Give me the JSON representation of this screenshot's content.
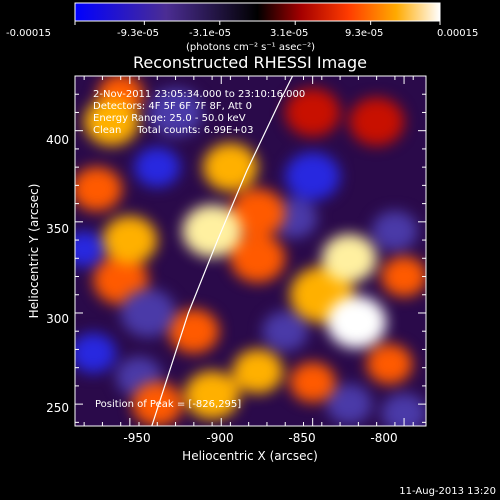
{
  "chart_data": {
    "type": "heatmap",
    "title": "Reconstructed RHESSI Image",
    "xlabel": "Heliocentric X (arcsec)",
    "ylabel": "Heliocentric Y (arcsec)",
    "xlim": [
      -980,
      -788
    ],
    "ylim": [
      238,
      430
    ],
    "x_ticks": [
      -950,
      -900,
      -850,
      -800
    ],
    "x_tick_labels": [
      "-950",
      "-900",
      "-850",
      "-800"
    ],
    "y_ticks": [
      250,
      300,
      350,
      400
    ],
    "y_tick_labels": [
      "250",
      "300",
      "350",
      "400"
    ],
    "colorbar": {
      "min": -0.00015,
      "max": 0.00015,
      "tick_labels": [
        "-0.00015",
        "-9.3e-05",
        "-3.1e-05",
        "3.1e-05",
        "9.3e-05",
        "0.00015"
      ],
      "unit_label": "(photons cm⁻² s⁻¹ asec⁻²)"
    },
    "annotations": [
      "2-Nov-2011 23:05:34.000 to 23:10:16.000",
      "Detectors: 4F 5F 6F 7F 8F, Att 0",
      "Energy Range: 25.0 - 50.0 keV",
      "Clean     Total counts: 6.99E+03"
    ],
    "peak_label": "Position of Peak = [-826,295]",
    "peak": [
      -826,
      295
    ],
    "limb_line": [
      [
        -938,
        238
      ],
      [
        -918,
        300
      ],
      [
        -902,
        340
      ],
      [
        -886,
        378
      ],
      [
        -868,
        416
      ],
      [
        -861,
        430
      ]
    ],
    "blobs": [
      {
        "x": -826,
        "y": 295,
        "v": 1.0,
        "s": 13
      },
      {
        "x": -845,
        "y": 310,
        "v": 0.6,
        "s": 14
      },
      {
        "x": -830,
        "y": 330,
        "v": 0.7,
        "s": 12
      },
      {
        "x": -905,
        "y": 345,
        "v": 0.75,
        "s": 13
      },
      {
        "x": -880,
        "y": 355,
        "v": 0.5,
        "s": 12
      },
      {
        "x": -895,
        "y": 380,
        "v": 0.55,
        "s": 12
      },
      {
        "x": -880,
        "y": 330,
        "v": 0.5,
        "s": 12
      },
      {
        "x": -960,
        "y": 405,
        "v": 0.55,
        "s": 12
      },
      {
        "x": -955,
        "y": 420,
        "v": 0.45,
        "s": 10
      },
      {
        "x": -968,
        "y": 368,
        "v": 0.45,
        "s": 11
      },
      {
        "x": -950,
        "y": 340,
        "v": 0.55,
        "s": 12
      },
      {
        "x": -955,
        "y": 318,
        "v": 0.45,
        "s": 12
      },
      {
        "x": -915,
        "y": 290,
        "v": 0.5,
        "s": 11
      },
      {
        "x": -905,
        "y": 255,
        "v": 0.55,
        "s": 12
      },
      {
        "x": -880,
        "y": 268,
        "v": 0.55,
        "s": 11
      },
      {
        "x": -850,
        "y": 262,
        "v": 0.4,
        "s": 10
      },
      {
        "x": -808,
        "y": 272,
        "v": 0.45,
        "s": 10
      },
      {
        "x": -800,
        "y": 320,
        "v": 0.4,
        "s": 10
      },
      {
        "x": -815,
        "y": 405,
        "v": 0.3,
        "s": 12
      },
      {
        "x": -850,
        "y": 410,
        "v": 0.35,
        "s": 12
      },
      {
        "x": -935,
        "y": 250,
        "v": 0.4,
        "s": 11
      },
      {
        "x": -935,
        "y": 380,
        "v": -0.7,
        "s": 10
      },
      {
        "x": -925,
        "y": 410,
        "v": -0.5,
        "s": 12
      },
      {
        "x": -850,
        "y": 375,
        "v": -0.6,
        "s": 12
      },
      {
        "x": -860,
        "y": 352,
        "v": -0.4,
        "s": 10
      },
      {
        "x": -940,
        "y": 300,
        "v": -0.5,
        "s": 12
      },
      {
        "x": -970,
        "y": 278,
        "v": -0.6,
        "s": 10
      },
      {
        "x": -945,
        "y": 265,
        "v": -0.3,
        "s": 10
      },
      {
        "x": -805,
        "y": 345,
        "v": -0.5,
        "s": 10
      },
      {
        "x": -800,
        "y": 245,
        "v": -0.3,
        "s": 10
      },
      {
        "x": -830,
        "y": 250,
        "v": -0.3,
        "s": 10
      },
      {
        "x": -865,
        "y": 290,
        "v": -0.3,
        "s": 10
      },
      {
        "x": -975,
        "y": 335,
        "v": -0.6,
        "s": 9
      }
    ]
  },
  "footer": {
    "timestamp": "11-Aug-2013 13:20"
  }
}
